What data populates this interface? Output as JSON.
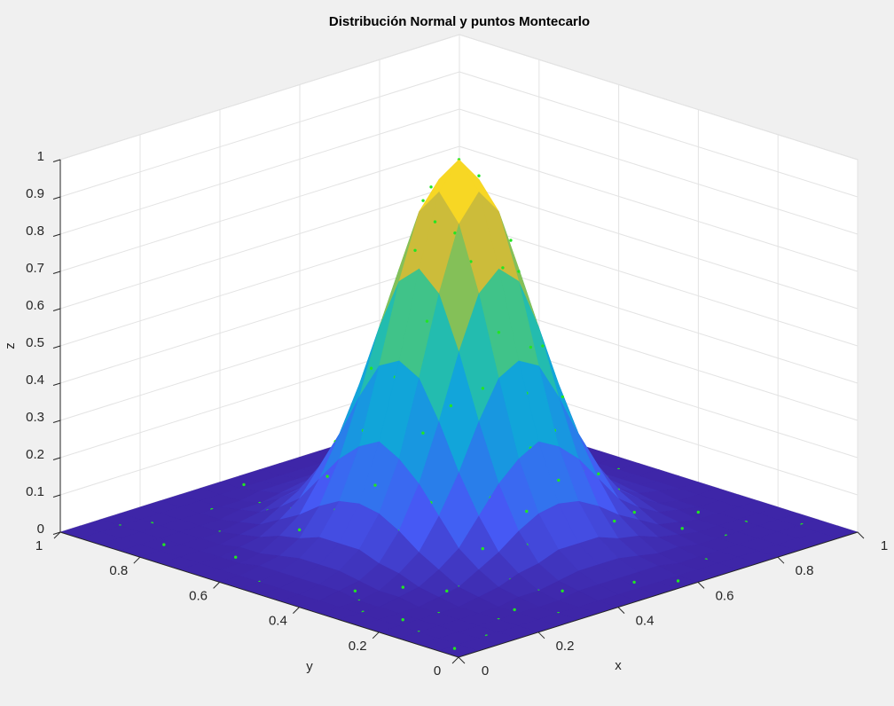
{
  "chart_data": {
    "type": "surface",
    "title": "Distribución Normal y puntos Montecarlo",
    "xlabel": "x",
    "ylabel": "y",
    "zlabel": "z",
    "xlim": [
      0,
      1
    ],
    "ylim": [
      0,
      1
    ],
    "zlim": [
      0,
      1
    ],
    "xticks": [
      0,
      0.2,
      0.4,
      0.6,
      0.8,
      1
    ],
    "yticks": [
      0,
      0.2,
      0.4,
      0.6,
      0.8,
      1
    ],
    "zticks": [
      0,
      0.1,
      0.2,
      0.3,
      0.4,
      0.5,
      0.6,
      0.7,
      0.8,
      0.9,
      1
    ],
    "grid": true,
    "colormap": "parula",
    "surface": {
      "x": [
        0,
        0.05,
        0.1,
        0.15,
        0.2,
        0.25,
        0.3,
        0.35,
        0.4,
        0.45,
        0.5,
        0.55,
        0.6,
        0.65,
        0.7,
        0.75,
        0.8,
        0.85,
        0.9,
        0.95,
        1
      ],
      "y": [
        0,
        0.05,
        0.1,
        0.15,
        0.2,
        0.25,
        0.3,
        0.35,
        0.4,
        0.45,
        0.5,
        0.55,
        0.6,
        0.65,
        0.7,
        0.75,
        0.8,
        0.85,
        0.9,
        0.95,
        1
      ],
      "z": [
        [
          0,
          0,
          0,
          0,
          0,
          0,
          0,
          0,
          0,
          0,
          0,
          0,
          0,
          0,
          0,
          0,
          0,
          0,
          0,
          0,
          0
        ],
        [
          0,
          0,
          0,
          0,
          0,
          0,
          0,
          0,
          0,
          0,
          0,
          0,
          0,
          0,
          0,
          0,
          0,
          0,
          0,
          0,
          0
        ],
        [
          0,
          0,
          0,
          0,
          0,
          0,
          0,
          0,
          0.01,
          0.01,
          0.01,
          0.01,
          0.01,
          0,
          0,
          0,
          0,
          0,
          0,
          0,
          0
        ],
        [
          0,
          0,
          0,
          0,
          0,
          0,
          0.01,
          0.01,
          0.02,
          0.03,
          0.03,
          0.03,
          0.02,
          0.01,
          0.01,
          0,
          0,
          0,
          0,
          0,
          0
        ],
        [
          0,
          0,
          0,
          0,
          0,
          0.01,
          0.02,
          0.04,
          0.05,
          0.07,
          0.07,
          0.07,
          0.05,
          0.04,
          0.02,
          0.01,
          0,
          0,
          0,
          0,
          0
        ],
        [
          0,
          0,
          0,
          0,
          0.01,
          0.02,
          0.05,
          0.08,
          0.12,
          0.15,
          0.16,
          0.15,
          0.12,
          0.08,
          0.05,
          0.02,
          0.01,
          0,
          0,
          0,
          0
        ],
        [
          0,
          0,
          0,
          0.01,
          0.02,
          0.05,
          0.09,
          0.16,
          0.23,
          0.28,
          0.31,
          0.28,
          0.23,
          0.16,
          0.09,
          0.05,
          0.02,
          0.01,
          0,
          0,
          0
        ],
        [
          0,
          0,
          0,
          0.01,
          0.04,
          0.08,
          0.16,
          0.26,
          0.38,
          0.48,
          0.51,
          0.48,
          0.38,
          0.26,
          0.16,
          0.08,
          0.04,
          0.01,
          0,
          0,
          0
        ],
        [
          0,
          0,
          0.01,
          0.02,
          0.05,
          0.12,
          0.23,
          0.38,
          0.55,
          0.69,
          0.74,
          0.69,
          0.55,
          0.38,
          0.23,
          0.12,
          0.05,
          0.02,
          0.01,
          0,
          0
        ],
        [
          0,
          0,
          0.01,
          0.03,
          0.07,
          0.15,
          0.28,
          0.48,
          0.69,
          0.86,
          0.93,
          0.86,
          0.69,
          0.48,
          0.28,
          0.15,
          0.07,
          0.03,
          0.01,
          0,
          0
        ],
        [
          0,
          0,
          0.01,
          0.03,
          0.07,
          0.16,
          0.31,
          0.51,
          0.74,
          0.93,
          1,
          0.93,
          0.74,
          0.51,
          0.31,
          0.16,
          0.07,
          0.03,
          0.01,
          0,
          0
        ],
        [
          0,
          0,
          0.01,
          0.03,
          0.07,
          0.15,
          0.28,
          0.48,
          0.69,
          0.86,
          0.93,
          0.86,
          0.69,
          0.48,
          0.28,
          0.15,
          0.07,
          0.03,
          0.01,
          0,
          0
        ],
        [
          0,
          0,
          0.01,
          0.02,
          0.05,
          0.12,
          0.23,
          0.38,
          0.55,
          0.69,
          0.74,
          0.69,
          0.55,
          0.38,
          0.23,
          0.12,
          0.05,
          0.02,
          0.01,
          0,
          0
        ],
        [
          0,
          0,
          0,
          0.01,
          0.04,
          0.08,
          0.16,
          0.26,
          0.38,
          0.48,
          0.51,
          0.48,
          0.38,
          0.26,
          0.16,
          0.08,
          0.04,
          0.01,
          0,
          0,
          0
        ],
        [
          0,
          0,
          0,
          0.01,
          0.02,
          0.05,
          0.09,
          0.16,
          0.23,
          0.28,
          0.31,
          0.28,
          0.23,
          0.16,
          0.09,
          0.05,
          0.02,
          0.01,
          0,
          0,
          0
        ],
        [
          0,
          0,
          0,
          0,
          0.01,
          0.02,
          0.05,
          0.08,
          0.12,
          0.15,
          0.16,
          0.15,
          0.12,
          0.08,
          0.05,
          0.02,
          0.01,
          0,
          0,
          0,
          0
        ],
        [
          0,
          0,
          0,
          0,
          0,
          0.01,
          0.02,
          0.04,
          0.05,
          0.07,
          0.07,
          0.07,
          0.05,
          0.04,
          0.02,
          0.01,
          0,
          0,
          0,
          0,
          0
        ],
        [
          0,
          0,
          0,
          0,
          0,
          0,
          0.01,
          0.01,
          0.02,
          0.03,
          0.03,
          0.03,
          0.02,
          0.01,
          0.01,
          0,
          0,
          0,
          0,
          0,
          0
        ],
        [
          0,
          0,
          0,
          0,
          0,
          0,
          0,
          0,
          0.01,
          0.01,
          0.01,
          0.01,
          0.01,
          0,
          0,
          0,
          0,
          0,
          0,
          0,
          0
        ],
        [
          0,
          0,
          0,
          0,
          0,
          0,
          0,
          0,
          0,
          0,
          0,
          0,
          0,
          0,
          0,
          0,
          0,
          0,
          0,
          0,
          0
        ],
        [
          0,
          0,
          0,
          0,
          0,
          0,
          0,
          0,
          0,
          0,
          0,
          0,
          0,
          0,
          0,
          0,
          0,
          0,
          0,
          0,
          0
        ]
      ]
    },
    "points": {
      "color": "#22e622",
      "x": [
        0.5,
        0.52,
        0.46,
        0.55,
        0.44,
        0.58,
        0.49,
        0.41,
        0.56,
        0.61,
        0.38,
        0.47,
        0.53,
        0.64,
        0.36,
        0.42,
        0.62,
        0.33,
        0.55,
        0.31,
        0.68,
        0.45,
        0.67,
        0.3,
        0.7,
        0.38,
        0.6,
        0.29,
        0.72,
        0.52,
        0.27,
        0.43,
        0.74,
        0.35,
        0.65,
        0.57,
        0.45,
        0.51,
        0.4,
        0.6,
        0.59,
        0.34,
        0.5,
        0.66,
        0.48,
        0.25,
        0.4,
        0.77,
        0.62,
        0.24,
        0.55,
        0.78,
        0.33,
        0.71,
        0.28,
        0.53,
        0.47,
        0.43,
        0.54,
        0.37,
        0.15,
        0.1,
        0.2,
        0.05,
        0.3,
        0.12,
        0.22,
        0.18,
        0.35,
        0.08,
        0.26,
        0.4,
        0.45,
        0.6,
        0.7,
        0.82,
        0.88,
        0.92,
        0.78,
        0.85,
        0.9,
        0.8,
        0.95,
        0.72,
        0.62,
        0.5,
        0.35,
        0.2,
        0.12,
        0.05,
        0.15,
        0.28,
        0.08,
        0.18,
        0.22,
        0.82,
        0.75,
        0.25,
        0.4,
        0.65,
        0.96,
        0.03,
        0.58,
        0.12,
        0.33,
        0.87,
        0.68,
        0.42,
        0.97,
        0.1,
        0.52,
        0.75,
        0.3,
        0.55,
        0.8,
        0.06,
        0.38,
        0.9,
        0.65,
        0.7
      ],
      "y": [
        0.5,
        0.47,
        0.53,
        0.55,
        0.45,
        0.49,
        0.59,
        0.52,
        0.41,
        0.56,
        0.46,
        0.37,
        0.64,
        0.44,
        0.58,
        0.36,
        0.36,
        0.42,
        0.31,
        0.55,
        0.55,
        0.69,
        0.32,
        0.37,
        0.42,
        0.3,
        0.29,
        0.62,
        0.61,
        0.27,
        0.48,
        0.26,
        0.48,
        0.66,
        0.68,
        0.44,
        0.42,
        0.4,
        0.4,
        0.6,
        0.38,
        0.5,
        0.33,
        0.5,
        0.3,
        0.4,
        0.23,
        0.4,
        0.23,
        0.55,
        0.22,
        0.55,
        0.27,
        0.27,
        0.7,
        0.53,
        0.56,
        0.49,
        0.36,
        0.39,
        0.2,
        0.35,
        0.1,
        0.15,
        0.05,
        0.05,
        0.25,
        0.32,
        0.15,
        0.22,
        0.12,
        0.08,
        0.18,
        0.12,
        0.08,
        0.15,
        0.28,
        0.4,
        0.22,
        0.62,
        0.75,
        0.85,
        0.55,
        0.8,
        0.88,
        0.92,
        0.85,
        0.8,
        0.68,
        0.55,
        0.92,
        0.9,
        0.82,
        0.45,
        0.62,
        0.45,
        0.75,
        0.25,
        0.78,
        0.18,
        0.1,
        0.04,
        0.03,
        0.38,
        0.2,
        0.9,
        0.95,
        0.96,
        0.68,
        0.95,
        0.08,
        0.35,
        0.78,
        0.8,
        0.68,
        0.3,
        0.12,
        0.18,
        0.72,
        0.88
      ],
      "z": [
        1.0,
        0.96,
        0.93,
        0.86,
        0.84,
        0.83,
        0.78,
        0.78,
        0.71,
        0.63,
        0.62,
        0.59,
        0.55,
        0.5,
        0.46,
        0.46,
        0.37,
        0.35,
        0.32,
        0.32,
        0.36,
        0.32,
        0.16,
        0.19,
        0.25,
        0.2,
        0.2,
        0.18,
        0.17,
        0.21,
        0.21,
        0.16,
        0.18,
        0.24,
        0.2,
        0.78,
        0.77,
        0.74,
        0.55,
        0.55,
        0.51,
        0.47,
        0.43,
        0.47,
        0.3,
        0.12,
        0.09,
        0.09,
        0.08,
        0.13,
        0.09,
        0.09,
        0.09,
        0.06,
        0.07,
        0.95,
        0.88,
        0.86,
        0.53,
        0.42,
        0,
        0,
        0,
        0,
        0,
        0,
        0.02,
        0.02,
        0.01,
        0,
        0,
        0,
        0.04,
        0.01,
        0,
        0,
        0,
        0,
        0.01,
        0.02,
        0,
        0,
        0,
        0.02,
        0.01,
        0,
        0.01,
        0,
        0,
        0,
        0,
        0,
        0,
        0.04,
        0.06,
        0.04,
        0.02,
        0.02,
        0.07,
        0.02,
        0,
        0,
        0,
        0.01,
        0.03,
        0,
        0,
        0,
        0,
        0,
        0,
        0.08,
        0.03,
        0.06,
        0.03,
        0,
        0.01,
        0,
        0.12,
        0
      ]
    }
  }
}
